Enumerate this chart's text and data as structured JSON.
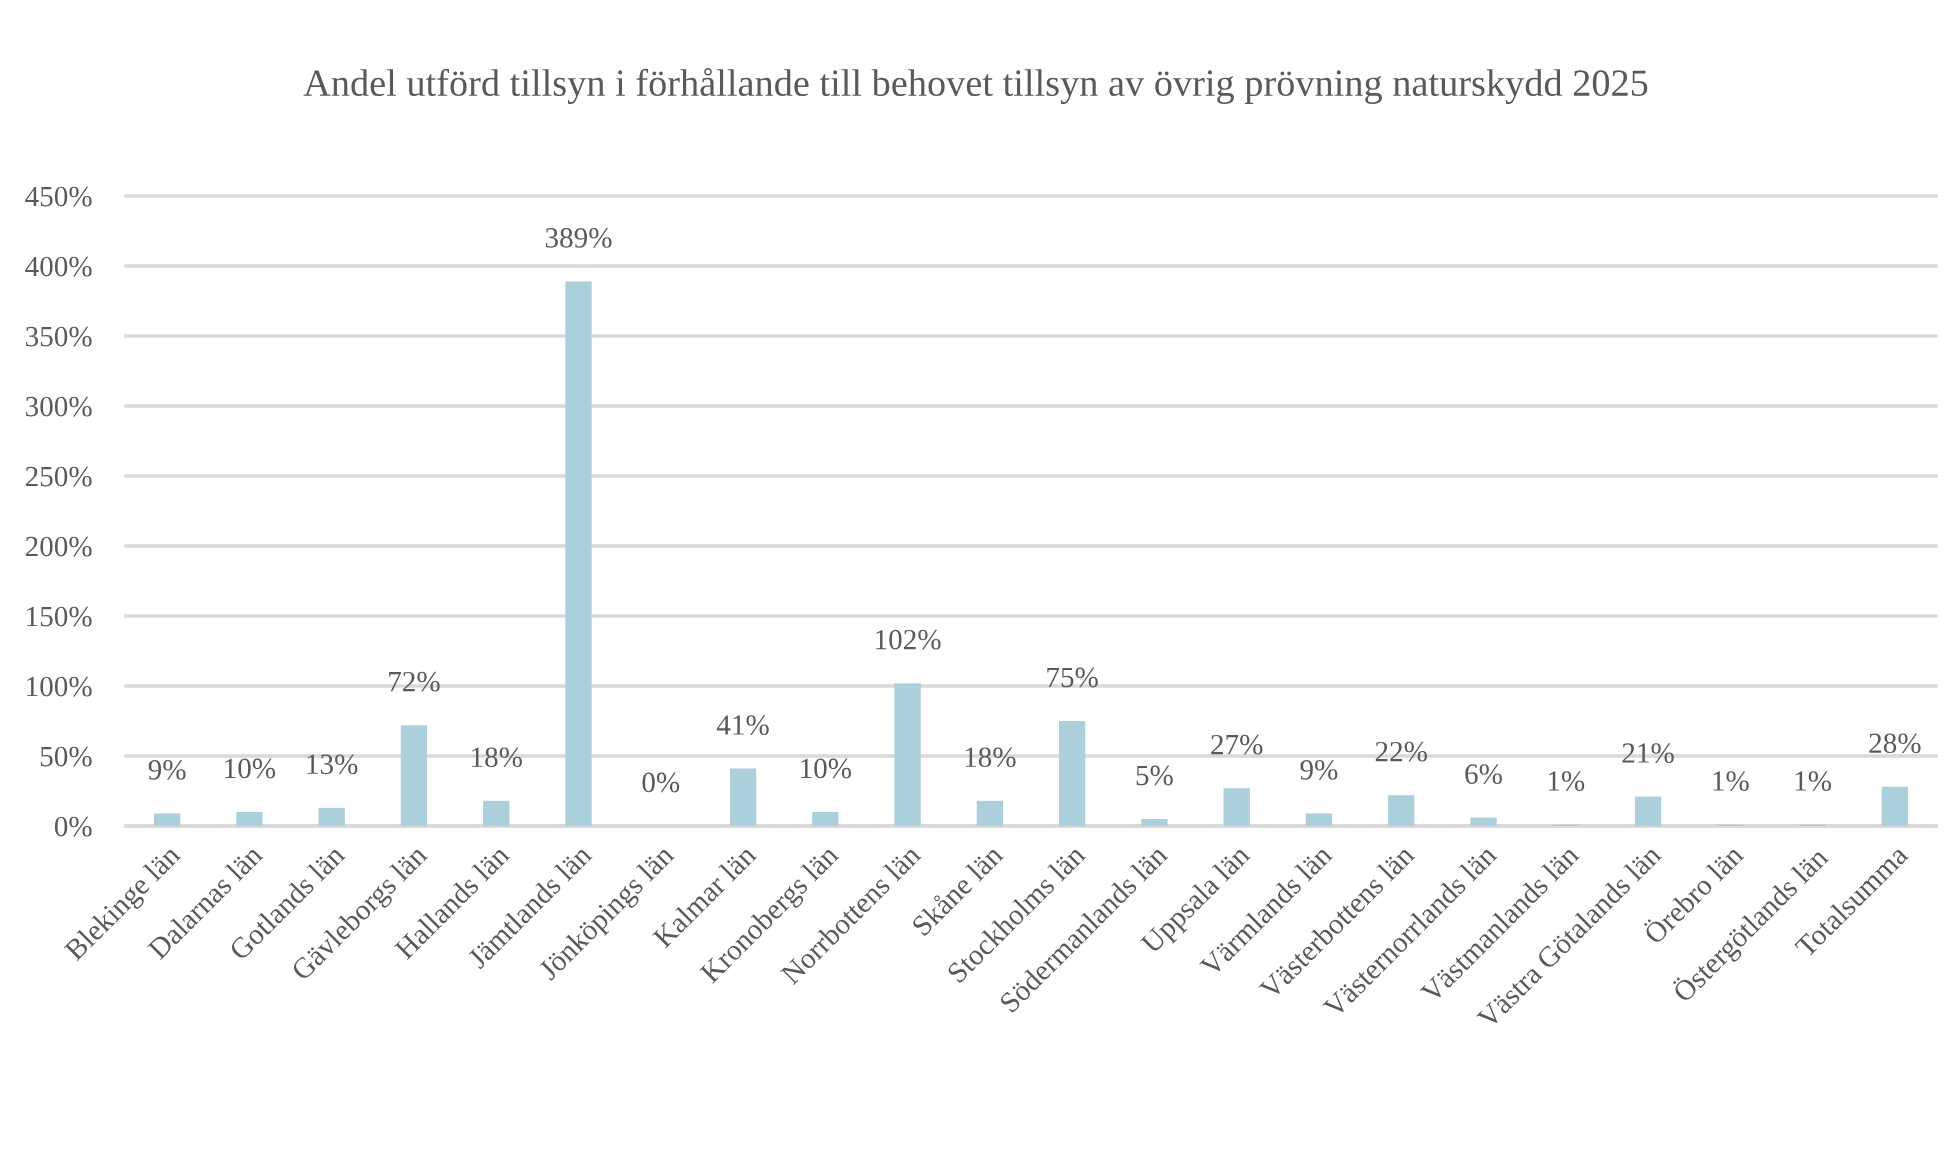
{
  "chart_data": {
    "type": "bar",
    "title": "Andel utförd tillsyn i förhållande till behovet tillsyn av övrig prövning naturskydd 2025",
    "categories": [
      "Blekinge län",
      "Dalarnas län",
      "Gotlands län",
      "Gävleborgs län",
      "Hallands län",
      "Jämtlands län",
      "Jönköpings län",
      "Kalmar län",
      "Kronobergs län",
      "Norrbottens län",
      "Skåne län",
      "Stockholms län",
      "Södermanlands län",
      "Uppsala län",
      "Värmlands län",
      "Västerbottens län",
      "Västernorrlands län",
      "Västmanlands län",
      "Västra Götalands län",
      "Örebro län",
      "Östergötlands län",
      "Totalsumma"
    ],
    "values": [
      9,
      10,
      13,
      72,
      18,
      389,
      0,
      41,
      10,
      102,
      18,
      75,
      5,
      27,
      9,
      22,
      6,
      1,
      21,
      1,
      1,
      28
    ],
    "value_labels": [
      "9%",
      "10%",
      "13%",
      "72%",
      "18%",
      "389%",
      "0%",
      "41%",
      "10%",
      "102%",
      "18%",
      "75%",
      "5%",
      "27%",
      "9%",
      "22%",
      "6%",
      "1%",
      "21%",
      "1%",
      "1%",
      "28%"
    ],
    "color": "#abd0dc",
    "ylim": [
      0,
      450
    ],
    "yticks": [
      {
        "value": 0,
        "label": "0%"
      },
      {
        "value": 50,
        "label": "50%"
      },
      {
        "value": 100,
        "label": "100%"
      },
      {
        "value": 150,
        "label": "150%"
      },
      {
        "value": 200,
        "label": "200%"
      },
      {
        "value": 250,
        "label": "250%"
      },
      {
        "value": 300,
        "label": "300%"
      },
      {
        "value": 350,
        "label": "350%"
      },
      {
        "value": 400,
        "label": "400%"
      },
      {
        "value": 450,
        "label": "450%"
      }
    ],
    "grid": "y"
  }
}
